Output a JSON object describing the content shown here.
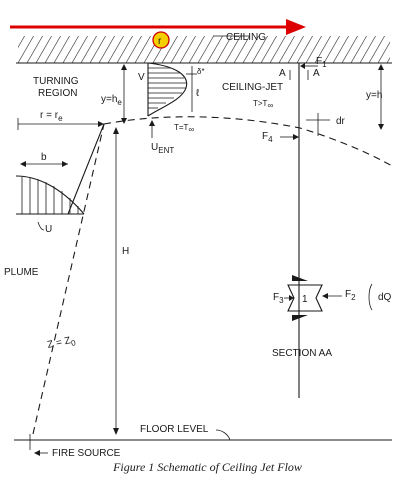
{
  "caption": "Figure 1  Schematic of Ceiling Jet Flow",
  "colors": {
    "arrow": "#dd0000",
    "marker_fill": "#f5d000",
    "marker_border": "#cc0000",
    "ink": "#1a1a1a"
  },
  "labels": {
    "r_marker": "r",
    "ceiling": "CEILING",
    "turning_region_line1": "TURNING",
    "turning_region_line2": "REGION",
    "y_he": "y=h",
    "y_he_sub": "e",
    "r_re": "r = r",
    "r_re_sub": "e",
    "v": "V",
    "delta_star": "δ*",
    "l": "ℓ",
    "u_ent": "U",
    "u_ent_sub": "ENT",
    "t_inf": "T=T",
    "t_inf_sub": "∞",
    "ceiling_jet": "CEILING-JET",
    "a_left": "A",
    "a_right": "A",
    "f1": "F",
    "f1_sub": "1",
    "t_gt": "T>T",
    "t_gt_sub": "∞",
    "y_h": "y=h",
    "dr": "dr",
    "f4": "F",
    "f4_sub": "4",
    "b": "b",
    "u": "U",
    "plume": "PLUME",
    "h": "H",
    "f3": "F",
    "f3_sub": "3",
    "one": "1",
    "f2": "F",
    "f2_sub": "2",
    "dq": "dQ",
    "z_z0": "Z = Z",
    "z_z0_sub": "0",
    "section_aa": "SECTION AA",
    "floor_level": "FLOOR LEVEL",
    "fire_source": "FIRE SOURCE"
  }
}
